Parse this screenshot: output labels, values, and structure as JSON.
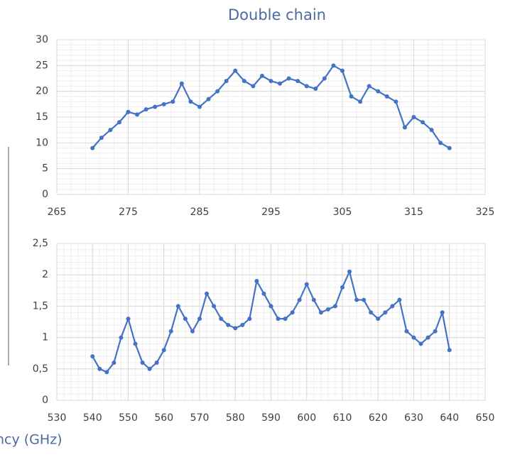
{
  "chart_data": [
    {
      "type": "line",
      "title": "Double chain",
      "x": [
        270,
        271.25,
        272.5,
        273.75,
        275,
        276.25,
        277.5,
        278.75,
        280,
        281.25,
        282.5,
        283.75,
        285,
        286.25,
        287.5,
        288.75,
        290,
        291.25,
        292.5,
        293.75,
        295,
        296.25,
        297.5,
        298.75,
        300,
        301.25,
        302.5,
        303.75,
        305,
        306.25,
        307.5,
        308.75,
        310,
        311.25,
        312.5,
        313.75,
        315,
        316.25,
        317.5,
        318.75,
        320
      ],
      "series": [
        {
          "color": "#4472c4",
          "values": [
            9,
            11,
            12.5,
            14,
            16,
            15.5,
            16.5,
            17,
            17.5,
            18,
            21.5,
            18,
            17,
            18.5,
            20,
            22,
            24,
            22,
            21,
            23,
            22,
            21.5,
            22.5,
            22,
            21,
            20.5,
            22.5,
            25,
            24,
            19,
            18,
            21,
            20,
            19,
            18,
            13,
            15,
            14,
            12.5,
            10,
            9
          ]
        }
      ],
      "xlim": [
        265,
        325
      ],
      "xticks": [
        265,
        275,
        285,
        295,
        305,
        315,
        325
      ],
      "ylim": [
        0,
        30
      ],
      "yticks": [
        0,
        5,
        10,
        15,
        20,
        25,
        30
      ],
      "grid": true,
      "minor_grid": true
    },
    {
      "type": "line",
      "xlabel": "ncy (GHz)",
      "x": [
        540,
        542,
        544,
        546,
        548,
        550,
        552,
        554,
        556,
        558,
        560,
        562,
        564,
        566,
        568,
        570,
        572,
        574,
        576,
        578,
        580,
        582,
        584,
        586,
        588,
        590,
        592,
        594,
        596,
        598,
        600,
        602,
        604,
        606,
        608,
        610,
        612,
        614,
        616,
        618,
        620,
        622,
        624,
        626,
        628,
        630,
        632,
        634,
        636,
        638,
        640
      ],
      "series": [
        {
          "color": "#4472c4",
          "values": [
            0.7,
            0.5,
            0.45,
            0.6,
            1.0,
            1.3,
            0.9,
            0.6,
            0.5,
            0.6,
            0.8,
            1.1,
            1.5,
            1.3,
            1.1,
            1.3,
            1.7,
            1.5,
            1.3,
            1.2,
            1.15,
            1.2,
            1.3,
            1.9,
            1.7,
            1.5,
            1.3,
            1.3,
            1.4,
            1.6,
            1.85,
            1.6,
            1.4,
            1.45,
            1.5,
            1.8,
            2.05,
            1.6,
            1.6,
            1.4,
            1.3,
            1.4,
            1.5,
            1.6,
            1.1,
            1.0,
            0.9,
            1.0,
            1.1,
            1.4,
            0.8
          ]
        }
      ],
      "xlim": [
        530,
        650
      ],
      "xticks": [
        530,
        540,
        550,
        560,
        570,
        580,
        590,
        600,
        610,
        620,
        630,
        640,
        650
      ],
      "ylim": [
        0,
        2.5
      ],
      "yticks": [
        0,
        {
          "value": 0.5,
          "label": "0,5"
        },
        1,
        {
          "value": 1.5,
          "label": "1,5"
        },
        2,
        {
          "value": 2.5,
          "label": "2,5"
        }
      ],
      "grid": true,
      "minor_grid": true
    }
  ]
}
